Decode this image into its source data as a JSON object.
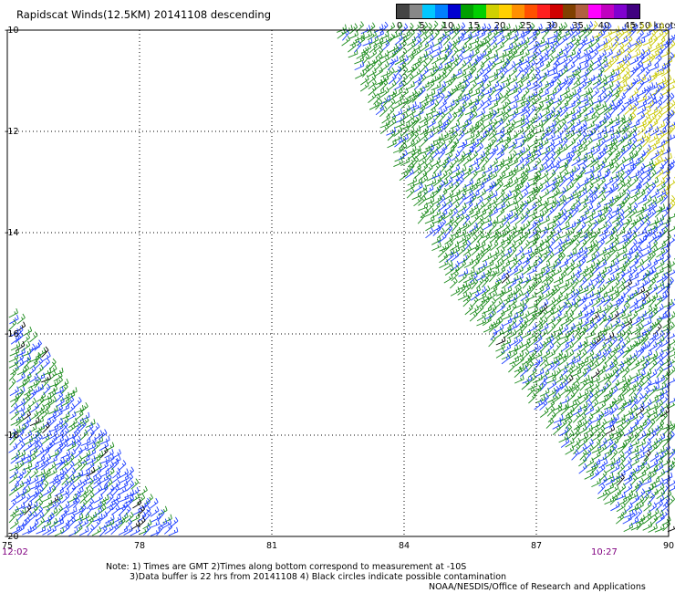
{
  "title": "Rapidscat Winds(12.5KM) 20141108 descending",
  "legend": {
    "unit_label": ">50 knots",
    "ticks": [
      "0",
      "5",
      "10",
      "15",
      "20",
      "25",
      "30",
      "35",
      "40",
      "45"
    ],
    "colors": [
      "#444444",
      "#888888",
      "#00c8ff",
      "#0080ff",
      "#0000d0",
      "#00a000",
      "#00d000",
      "#d0d000",
      "#ffd000",
      "#ff9000",
      "#ff5000",
      "#ff2020",
      "#d00000",
      "#804000",
      "#b06040",
      "#ff00ff",
      "#c000c0",
      "#8000d0",
      "#400080"
    ]
  },
  "map": {
    "lon_labels": [
      "75",
      "78",
      "81",
      "84",
      "87",
      "90"
    ],
    "lat_labels": [
      "-10",
      "-12",
      "-14",
      "-16",
      "-18",
      "-20"
    ],
    "lon_range": [
      75,
      90
    ],
    "lat_range": [
      -20,
      -10
    ],
    "grid": "dotted",
    "swaths": [
      {
        "name": "east",
        "polygon_lonlat": [
          [
            82.4,
            -10
          ],
          [
            90,
            -10
          ],
          [
            90,
            -20
          ],
          [
            89.0,
            -20
          ],
          [
            85.0,
            -15.2
          ]
        ]
      },
      {
        "name": "west",
        "polygon_lonlat": [
          [
            75,
            -15.5
          ],
          [
            75,
            -20
          ],
          [
            78.9,
            -20
          ],
          [
            78.0,
            -19.2
          ]
        ]
      }
    ],
    "barb_colors": {
      "10-15": "#1a3cff",
      "15-20": "#1a8a1a",
      "20-25": "#c8c800",
      "contamination": "#000000"
    }
  },
  "time_labels": {
    "left": "12:02",
    "right": "10:27"
  },
  "notes": {
    "line1": "Note: 1) Times are GMT 2)Times along bottom correspond to measurement at -10S",
    "line2": "3)Data buffer is 22 hrs from 20141108 4) Black circles indicate possible contamination"
  },
  "credit": "NOAA/NESDIS/Office of Research and Applications"
}
